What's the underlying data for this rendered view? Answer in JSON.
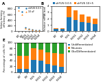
{
  "chart_data": [
    {
      "type": "scatter",
      "title": "A",
      "series": [
        {
          "name": "shFUS 0.0.5",
          "marker": "o",
          "x": [
            1,
            2,
            3,
            4,
            5,
            6,
            7
          ],
          "values": [
            850,
            700,
            120,
            80,
            60,
            40,
            30
          ]
        },
        {
          "name": "10 uF",
          "marker": "^",
          "x": [
            1,
            2,
            3,
            4,
            5,
            6,
            7
          ],
          "values": [
            750,
            600,
            100,
            70,
            50,
            35,
            25
          ]
        }
      ],
      "ylabel": "Colony-forming\nefficiency (%)",
      "xlim": [
        0,
        8
      ],
      "xticks": [
        {
          "value": 1,
          "label": "BT"
        },
        {
          "value": 2,
          "label": "EV"
        },
        {
          "value": 3,
          "label": "FUS"
        },
        {
          "value": 4,
          "label": "FUS1"
        },
        {
          "value": 5,
          "label": "FUS2"
        },
        {
          "value": 6,
          "label": "FUS3"
        },
        {
          "value": 7,
          "label": "FUS4"
        }
      ],
      "ylim": [
        0,
        900
      ],
      "yticks": [
        0,
        200,
        400,
        600,
        800
      ],
      "legend": "upper right"
    },
    {
      "type": "bar",
      "stacked": true,
      "title": "B",
      "categories": [
        "BT",
        "EV",
        "FUS",
        "FUS1",
        "FUS2",
        "FUS3",
        "FUS4"
      ],
      "series": [
        {
          "name": "shFUS 0.0.5",
          "values": [
            0.3,
            0.3,
            2.2,
            1.8,
            1.5,
            1.3,
            1.1
          ]
        },
        {
          "name": "shFUS 10+5",
          "values": [
            0.2,
            0.2,
            1.8,
            1.5,
            1.2,
            1.0,
            0.9
          ]
        }
      ],
      "ylabel": "Relative mRNA level",
      "ylim": [
        0,
        4
      ],
      "yticks": [
        0,
        1,
        2,
        3,
        4
      ],
      "legend": "upper left"
    },
    {
      "type": "bar",
      "stacked": true,
      "title": "E",
      "categories": [
        "BT",
        "EV",
        "FUS",
        "FUS1",
        "FUS2",
        "FUS3",
        "FUS4"
      ],
      "series": [
        {
          "name": "Undifferentiated",
          "values": [
            10,
            12,
            42,
            38,
            28,
            22,
            18
          ]
        },
        {
          "name": "Neurons",
          "values": [
            45,
            43,
            38,
            38,
            40,
            43,
            44
          ]
        },
        {
          "name": "Glia/Differentiated",
          "values": [
            45,
            45,
            20,
            24,
            32,
            35,
            38
          ]
        }
      ],
      "ylabel": "Percentage of cells (%)",
      "ylim": [
        0,
        100
      ],
      "yticks": [
        0,
        20,
        40,
        60,
        80,
        100
      ],
      "legend": "upper right"
    }
  ]
}
